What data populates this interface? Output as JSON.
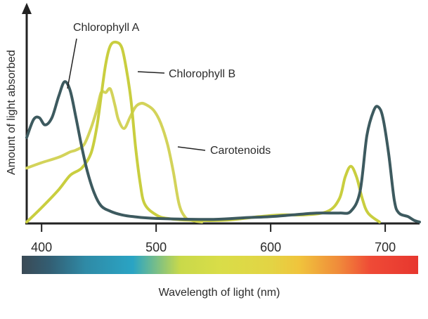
{
  "chart_data": {
    "type": "line",
    "xlabel": "",
    "ylabel": "Amount of light absorbed",
    "xlim": [
      387,
      730
    ],
    "ylim": [
      0,
      100
    ],
    "x_ticks": [
      400,
      500,
      600,
      700
    ],
    "grid": false,
    "spectrum_bar_label": "Wavelength of light (nm)",
    "series": [
      {
        "name": "Chlorophyll A",
        "color": "#3d5a5f",
        "points": [
          [
            387,
            47
          ],
          [
            393,
            57
          ],
          [
            398,
            58
          ],
          [
            403,
            54
          ],
          [
            409,
            58
          ],
          [
            415,
            70
          ],
          [
            420,
            78
          ],
          [
            425,
            73
          ],
          [
            430,
            58
          ],
          [
            435,
            42
          ],
          [
            440,
            28
          ],
          [
            446,
            16
          ],
          [
            452,
            9
          ],
          [
            460,
            6
          ],
          [
            470,
            4
          ],
          [
            480,
            3
          ],
          [
            500,
            2
          ],
          [
            550,
            1.5
          ],
          [
            580,
            2.5
          ],
          [
            600,
            3
          ],
          [
            620,
            4
          ],
          [
            640,
            5
          ],
          [
            660,
            5
          ],
          [
            670,
            6
          ],
          [
            678,
            17
          ],
          [
            684,
            48
          ],
          [
            690,
            62
          ],
          [
            694,
            64
          ],
          [
            698,
            58
          ],
          [
            703,
            38
          ],
          [
            708,
            12
          ],
          [
            712,
            5
          ],
          [
            720,
            3
          ],
          [
            725,
            1
          ],
          [
            730,
            0
          ]
        ]
      },
      {
        "name": "Chlorophyll B",
        "color": "#c9ce3f",
        "points": [
          [
            387,
            0
          ],
          [
            400,
            8
          ],
          [
            415,
            18
          ],
          [
            425,
            26
          ],
          [
            435,
            30
          ],
          [
            443,
            38
          ],
          [
            448,
            52
          ],
          [
            452,
            70
          ],
          [
            456,
            88
          ],
          [
            460,
            98
          ],
          [
            465,
            100
          ],
          [
            470,
            97
          ],
          [
            474,
            85
          ],
          [
            478,
            68
          ],
          [
            482,
            42
          ],
          [
            486,
            22
          ],
          [
            490,
            10
          ],
          [
            500,
            4
          ],
          [
            510,
            2
          ],
          [
            530,
            1
          ],
          [
            560,
            1
          ],
          [
            590,
            3
          ],
          [
            610,
            4
          ],
          [
            630,
            4
          ],
          [
            650,
            6
          ],
          [
            660,
            13
          ],
          [
            665,
            25
          ],
          [
            670,
            31
          ],
          [
            675,
            25
          ],
          [
            680,
            13
          ],
          [
            685,
            5
          ],
          [
            695,
            0
          ]
        ]
      },
      {
        "name": "Carotenoids",
        "color": "#d3d35a",
        "points": [
          [
            387,
            30
          ],
          [
            400,
            33
          ],
          [
            415,
            36
          ],
          [
            425,
            39
          ],
          [
            430,
            40
          ],
          [
            437,
            43
          ],
          [
            443,
            52
          ],
          [
            448,
            62
          ],
          [
            452,
            72
          ],
          [
            456,
            72
          ],
          [
            460,
            74
          ],
          [
            464,
            65
          ],
          [
            467,
            57
          ],
          [
            472,
            52
          ],
          [
            477,
            58
          ],
          [
            482,
            64
          ],
          [
            487,
            66
          ],
          [
            492,
            65
          ],
          [
            498,
            62
          ],
          [
            504,
            55
          ],
          [
            510,
            43
          ],
          [
            515,
            28
          ],
          [
            520,
            10
          ],
          [
            525,
            3
          ],
          [
            530,
            1
          ],
          [
            540,
            0
          ]
        ]
      }
    ]
  }
}
